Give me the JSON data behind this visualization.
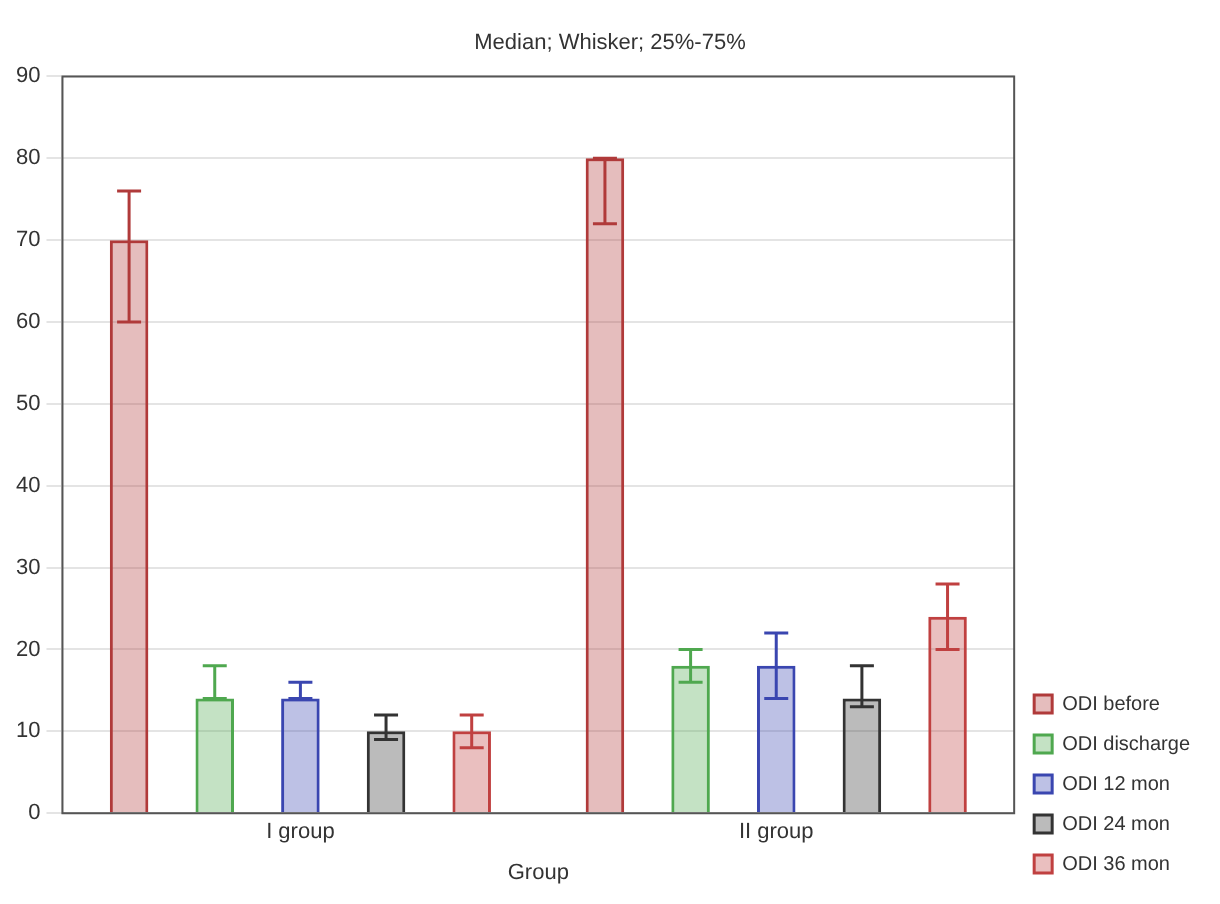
{
  "chart_data": {
    "type": "bar",
    "title": "Median; Whisker; 25%-75%",
    "xlabel": "Group",
    "categories": [
      "I group",
      "II group"
    ],
    "series": [
      {
        "name": "ODI before",
        "color": "#b03a3a",
        "values": [
          70,
          80
        ],
        "errors": [
          [
            60,
            76
          ],
          [
            72,
            80
          ]
        ]
      },
      {
        "name": "ODI discharge",
        "color": "#4fa84f",
        "values": [
          14,
          18
        ],
        "errors": [
          [
            14,
            18
          ],
          [
            16,
            20
          ]
        ]
      },
      {
        "name": "ODI 12 mon",
        "color": "#3a46b0",
        "values": [
          14,
          18
        ],
        "errors": [
          [
            14,
            16
          ],
          [
            14,
            22
          ]
        ]
      },
      {
        "name": "ODI 24 mon",
        "color": "#333333",
        "values": [
          10,
          14
        ],
        "errors": [
          [
            9,
            12
          ],
          [
            13,
            18
          ]
        ]
      },
      {
        "name": "ODI 36 mon",
        "color": "#c04040",
        "values": [
          10,
          24
        ],
        "errors": [
          [
            8,
            12
          ],
          [
            20,
            28
          ]
        ]
      }
    ],
    "ylim": [
      0,
      90
    ],
    "yticks": [
      0,
      10,
      20,
      30,
      40,
      50,
      60,
      70,
      80,
      90
    ],
    "grid": "y",
    "legend": "bottom right"
  }
}
